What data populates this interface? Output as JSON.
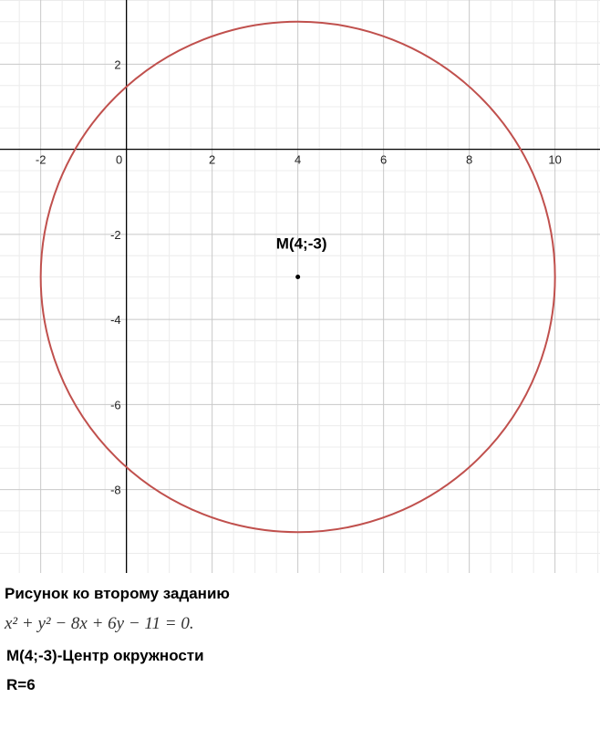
{
  "chart_data": {
    "type": "scatter",
    "xlim": [
      -2.95,
      11.05
    ],
    "ylim": [
      -9.96,
      3.51
    ],
    "major_step": 2,
    "minor_step": 0.5,
    "x_ticks": [
      -2,
      0,
      2,
      4,
      6,
      8,
      10
    ],
    "y_ticks": [
      2,
      -2,
      -4,
      -6,
      -8
    ],
    "x_tick_labels": [
      "-2",
      "0",
      "2",
      "4",
      "6",
      "8",
      "10"
    ],
    "y_tick_labels": [
      "2",
      "-2",
      "-4",
      "-6",
      "-8"
    ],
    "circle": {
      "center": [
        4,
        -3
      ],
      "radius": 6,
      "color": "#c0504d"
    },
    "point": {
      "x": 4,
      "y": -3,
      "label": "M(4;-3)"
    },
    "grid": true,
    "colors": {
      "major_grid": "#c8c8c8",
      "minor_grid": "#ececec",
      "axis": "#000000"
    }
  },
  "captions": {
    "title": "Рисунок ко второму заданию",
    "equation": "x² + y² − 8x + 6y − 11 = 0.",
    "center": "M(4;-3)-Центр окружности",
    "radius": "R=6"
  }
}
